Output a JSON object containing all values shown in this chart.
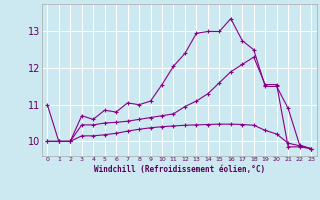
{
  "title": "",
  "xlabel": "Windchill (Refroidissement éolien,°C)",
  "bg_color": "#cce8f0",
  "line_color": "#880088",
  "grid_color": "#ffffff",
  "x": [
    0,
    1,
    2,
    3,
    4,
    5,
    6,
    7,
    8,
    9,
    10,
    11,
    12,
    13,
    14,
    15,
    16,
    17,
    18,
    19,
    20,
    21,
    22,
    23
  ],
  "line1": [
    11.0,
    10.0,
    10.0,
    10.7,
    10.6,
    10.85,
    10.8,
    11.05,
    11.0,
    11.1,
    11.55,
    12.05,
    12.4,
    12.95,
    13.0,
    13.0,
    13.35,
    12.75,
    12.5,
    11.5,
    11.5,
    10.9,
    9.9,
    9.8
  ],
  "line2": [
    10.0,
    10.0,
    10.0,
    10.45,
    10.45,
    10.5,
    10.52,
    10.55,
    10.6,
    10.65,
    10.7,
    10.75,
    10.95,
    11.1,
    11.3,
    11.6,
    11.9,
    12.1,
    12.3,
    11.55,
    11.55,
    9.85,
    9.85,
    9.8
  ],
  "line3": [
    10.0,
    10.0,
    10.0,
    10.15,
    10.15,
    10.18,
    10.22,
    10.28,
    10.33,
    10.37,
    10.4,
    10.42,
    10.44,
    10.45,
    10.46,
    10.47,
    10.47,
    10.46,
    10.44,
    10.3,
    10.2,
    9.95,
    9.88,
    9.8
  ],
  "ylim": [
    9.6,
    13.75
  ],
  "yticks": [
    10,
    11,
    12,
    13
  ],
  "xticks": [
    0,
    1,
    2,
    3,
    4,
    5,
    6,
    7,
    8,
    9,
    10,
    11,
    12,
    13,
    14,
    15,
    16,
    17,
    18,
    19,
    20,
    21,
    22,
    23
  ],
  "marker": "+",
  "markersize": 3.5,
  "linewidth": 0.8
}
